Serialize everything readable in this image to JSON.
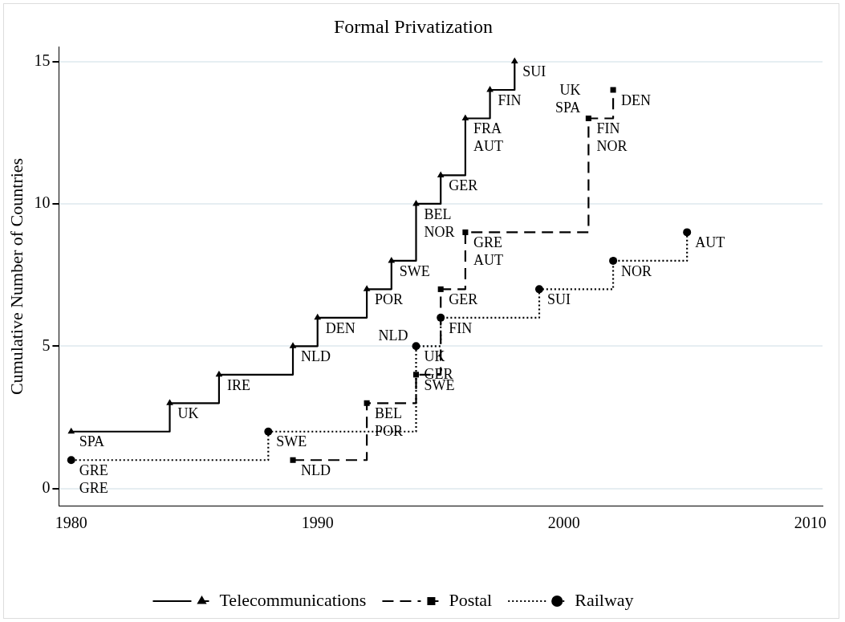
{
  "chart_data": {
    "type": "step",
    "title": "Formal Privatization",
    "ylabel": "Cumulative Number of Countries",
    "xlim": [
      1979.5,
      2010.5
    ],
    "xticks": [
      1980,
      1990,
      2000,
      2010
    ],
    "ylim": [
      -0.6,
      15.5
    ],
    "yticks": [
      0,
      5,
      10,
      15
    ],
    "grid": "y",
    "legend": "bottom",
    "series": [
      {
        "name": "Telecommunications",
        "color": "#000000",
        "marker": "triangle",
        "line_style": "solid",
        "x": [
          1980,
          1984,
          1986,
          1989,
          1990,
          1992,
          1993,
          1994,
          1995,
          1996,
          1997,
          1998
        ],
        "values": [
          2,
          3,
          4,
          5,
          6,
          7,
          8,
          10,
          11,
          13,
          14,
          15
        ]
      },
      {
        "name": "Postal",
        "color": "#000000",
        "marker": "square",
        "line_style": "dashed",
        "x": [
          1989,
          1992,
          1994,
          1995,
          1996,
          2001,
          2002
        ],
        "values": [
          1,
          3,
          4,
          7,
          9,
          13,
          14
        ]
      },
      {
        "name": "Railway",
        "color": "#000000",
        "marker": "circle",
        "line_style": "dotted",
        "x": [
          1980,
          1988,
          1994,
          1995,
          1999,
          2002,
          2005
        ],
        "values": [
          1,
          2,
          5,
          6,
          7,
          8,
          9
        ]
      }
    ],
    "annotations": [
      {
        "text": "SPA",
        "x": 1980,
        "y": 2
      },
      {
        "text": "UK",
        "x": 1984,
        "y": 3
      },
      {
        "text": "IRE",
        "x": 1986,
        "y": 4
      },
      {
        "text": "NLD",
        "x": 1989,
        "y": 5
      },
      {
        "text": "DEN",
        "x": 1990,
        "y": 6
      },
      {
        "text": "POR",
        "x": 1992,
        "y": 7
      },
      {
        "text": "SWE",
        "x": 1993,
        "y": 8
      },
      {
        "text": "BEL",
        "x": 1994,
        "y": 10
      },
      {
        "text": "NOR",
        "x": 1994,
        "y": 10
      },
      {
        "text": "GER",
        "x": 1995,
        "y": 11
      },
      {
        "text": "FRA",
        "x": 1996,
        "y": 13
      },
      {
        "text": "AUT",
        "x": 1996,
        "y": 13
      },
      {
        "text": "FIN",
        "x": 1997,
        "y": 14
      },
      {
        "text": "SUI",
        "x": 1998,
        "y": 15
      },
      {
        "text": "NLD",
        "x": 1989,
        "y": 1
      },
      {
        "text": "BEL",
        "x": 1992,
        "y": 3
      },
      {
        "text": "POR",
        "x": 1992,
        "y": 3
      },
      {
        "text": "SWE",
        "x": 1994,
        "y": 4
      },
      {
        "text": "GER",
        "x": 1995,
        "y": 7
      },
      {
        "text": "GRE",
        "x": 1996,
        "y": 9
      },
      {
        "text": "AUT",
        "x": 1996,
        "y": 9
      },
      {
        "text": "FIN",
        "x": 2001,
        "y": 13
      },
      {
        "text": "NOR",
        "x": 2001,
        "y": 13
      },
      {
        "text": "SPA",
        "x": 2001,
        "y": 13
      },
      {
        "text": "UK",
        "x": 2001,
        "y": 13
      },
      {
        "text": "DEN",
        "x": 2002,
        "y": 14
      },
      {
        "text": "GRE",
        "x": 1980,
        "y": 1
      },
      {
        "text": "GRE",
        "x": 1980,
        "y": 1
      },
      {
        "text": "SWE",
        "x": 1988,
        "y": 2
      },
      {
        "text": "UK",
        "x": 1994,
        "y": 5
      },
      {
        "text": "GER",
        "x": 1994,
        "y": 5
      },
      {
        "text": "NLD",
        "x": 1994,
        "y": 5
      },
      {
        "text": "FIN",
        "x": 1995,
        "y": 6
      },
      {
        "text": "SUI",
        "x": 1999,
        "y": 7
      },
      {
        "text": "NOR",
        "x": 2002,
        "y": 8
      },
      {
        "text": "AUT",
        "x": 2005,
        "y": 9
      }
    ]
  }
}
